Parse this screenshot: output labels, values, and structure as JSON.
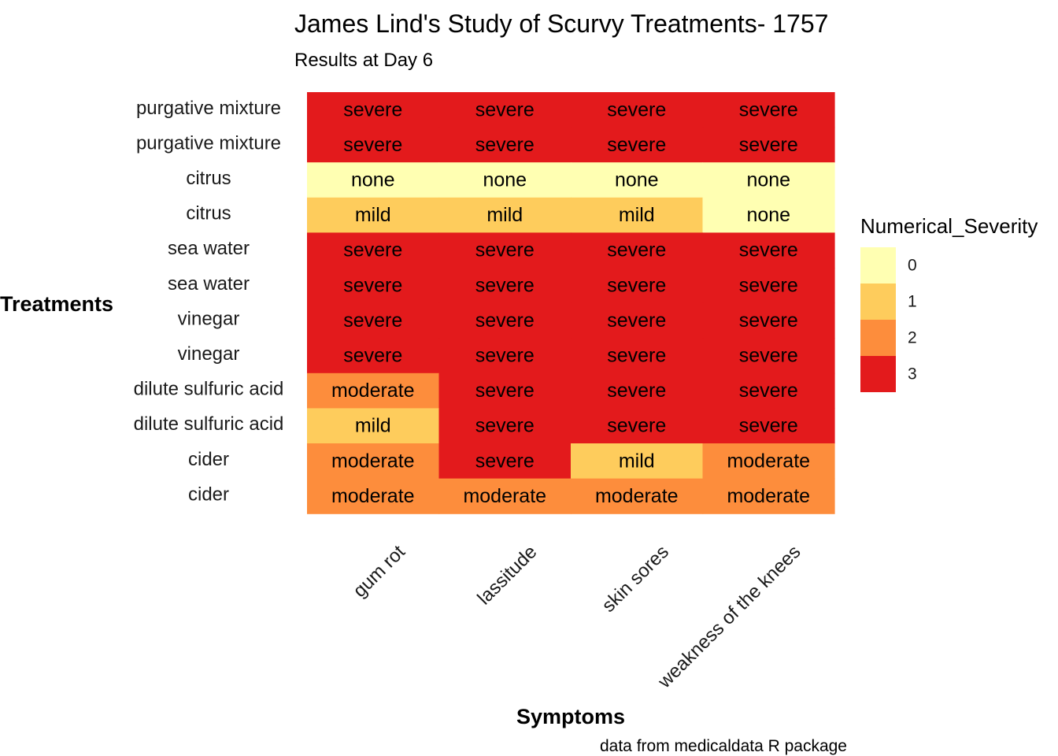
{
  "chart_data": {
    "type": "heatmap",
    "title": "James Lind's Study of Scurvy Treatments- 1757",
    "subtitle": "Results at Day 6",
    "xlabel": "Symptoms",
    "ylabel": "Treatments",
    "caption": "data from medicaldata R package",
    "x": [
      "gum rot",
      "lassitude",
      "skin sores",
      "weakness of the knees"
    ],
    "y": [
      "purgative mixture",
      "purgative mixture",
      "citrus",
      "citrus",
      "sea water",
      "sea water",
      "vinegar",
      "vinegar",
      "dilute sulfuric acid",
      "dilute sulfuric acid",
      "cider",
      "cider"
    ],
    "values": [
      [
        3,
        3,
        3,
        3
      ],
      [
        3,
        3,
        3,
        3
      ],
      [
        0,
        0,
        0,
        0
      ],
      [
        1,
        1,
        1,
        0
      ],
      [
        3,
        3,
        3,
        3
      ],
      [
        3,
        3,
        3,
        3
      ],
      [
        3,
        3,
        3,
        3
      ],
      [
        3,
        3,
        3,
        3
      ],
      [
        2,
        3,
        3,
        3
      ],
      [
        1,
        3,
        3,
        3
      ],
      [
        2,
        3,
        1,
        2
      ],
      [
        2,
        2,
        2,
        2
      ]
    ],
    "labels": [
      [
        "severe",
        "severe",
        "severe",
        "severe"
      ],
      [
        "severe",
        "severe",
        "severe",
        "severe"
      ],
      [
        "none",
        "none",
        "none",
        "none"
      ],
      [
        "mild",
        "mild",
        "mild",
        "none"
      ],
      [
        "severe",
        "severe",
        "severe",
        "severe"
      ],
      [
        "severe",
        "severe",
        "severe",
        "severe"
      ],
      [
        "severe",
        "severe",
        "severe",
        "severe"
      ],
      [
        "severe",
        "severe",
        "severe",
        "severe"
      ],
      [
        "moderate",
        "severe",
        "severe",
        "severe"
      ],
      [
        "mild",
        "severe",
        "severe",
        "severe"
      ],
      [
        "moderate",
        "severe",
        "mild",
        "moderate"
      ],
      [
        "moderate",
        "moderate",
        "moderate",
        "moderate"
      ]
    ],
    "legend": {
      "title": "Numerical_Severity",
      "levels": [
        0,
        1,
        2,
        3
      ],
      "placement": "right"
    },
    "colors": {
      "0": "#FFFFB2",
      "1": "#FECC5C",
      "2": "#FD8D3C",
      "3": "#E31A1C"
    },
    "grid": false
  }
}
